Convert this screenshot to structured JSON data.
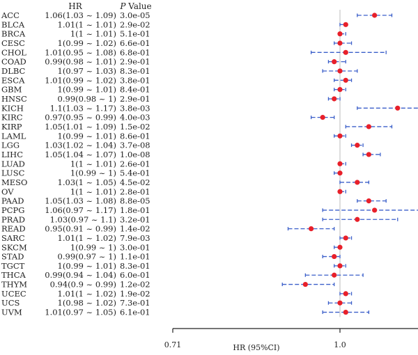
{
  "chart_data": {
    "type": "forest",
    "header": {
      "hr": "HR",
      "p": "P",
      "p_suffix": " Value"
    },
    "xlabel": "HR (95%CI)",
    "x_ticks": [
      "0.71",
      "1.0"
    ],
    "reference_line": 1.0,
    "colors": {
      "point": "#e8202a",
      "ci": "#3a5ec9",
      "ref": "#bbbbbb",
      "axis": "#222222"
    },
    "rows": [
      {
        "cancer": "ACC",
        "hr": 1.06,
        "low": 1.03,
        "high": 1.09,
        "hr_text": "1.06(1.03 ~ 1.09)",
        "p_text": "3.0e-05"
      },
      {
        "cancer": "BLCA",
        "hr": 1.01,
        "low": 1.0,
        "high": 1.01,
        "hr_text": "1.01(1 ~ 1.01)",
        "p_text": "2.9e-02"
      },
      {
        "cancer": "BRCA",
        "hr": 1.0,
        "low": 1.0,
        "high": 1.01,
        "hr_text": "1(1 ~ 1.01)",
        "p_text": "5.1e-01"
      },
      {
        "cancer": "CESC",
        "hr": 1.0,
        "low": 0.99,
        "high": 1.02,
        "hr_text": "1(0.99 ~ 1.02)",
        "p_text": "6.6e-01"
      },
      {
        "cancer": "CHOL",
        "hr": 1.01,
        "low": 0.95,
        "high": 1.08,
        "hr_text": "1.01(0.95 ~ 1.08)",
        "p_text": "6.8e-01"
      },
      {
        "cancer": "COAD",
        "hr": 0.99,
        "low": 0.98,
        "high": 1.01,
        "hr_text": "0.99(0.98 ~ 1.01)",
        "p_text": "2.9e-01"
      },
      {
        "cancer": "DLBC",
        "hr": 1.0,
        "low": 0.97,
        "high": 1.03,
        "hr_text": "1(0.97 ~ 1.03)",
        "p_text": "8.3e-01"
      },
      {
        "cancer": "ESCA",
        "hr": 1.01,
        "low": 0.99,
        "high": 1.02,
        "hr_text": "1.01(0.99 ~ 1.02)",
        "p_text": "3.8e-01"
      },
      {
        "cancer": "GBM",
        "hr": 1.0,
        "low": 0.99,
        "high": 1.01,
        "hr_text": "1(0.99 ~ 1.01)",
        "p_text": "8.4e-01"
      },
      {
        "cancer": "HNSC",
        "hr": 0.99,
        "low": 0.98,
        "high": 1.0,
        "hr_text": "0.99(0.98 ~ 1)",
        "p_text": "2.9e-01"
      },
      {
        "cancer": "KICH",
        "hr": 1.1,
        "low": 1.03,
        "high": 1.17,
        "hr_text": "1.1(1.03 ~ 1.17)",
        "p_text": "3.8e-03"
      },
      {
        "cancer": "KIRC",
        "hr": 0.97,
        "low": 0.95,
        "high": 0.99,
        "hr_text": "0.97(0.95 ~ 0.99)",
        "p_text": "4.0e-03"
      },
      {
        "cancer": "KIRP",
        "hr": 1.05,
        "low": 1.01,
        "high": 1.09,
        "hr_text": "1.05(1.01 ~ 1.09)",
        "p_text": "1.5e-02"
      },
      {
        "cancer": "LAML",
        "hr": 1.0,
        "low": 0.99,
        "high": 1.01,
        "hr_text": "1(0.99 ~ 1.01)",
        "p_text": "8.6e-01"
      },
      {
        "cancer": "LGG",
        "hr": 1.03,
        "low": 1.02,
        "high": 1.04,
        "hr_text": "1.03(1.02 ~ 1.04)",
        "p_text": "3.7e-08"
      },
      {
        "cancer": "LIHC",
        "hr": 1.05,
        "low": 1.04,
        "high": 1.07,
        "hr_text": "1.05(1.04 ~ 1.07)",
        "p_text": "1.0e-08"
      },
      {
        "cancer": "LUAD",
        "hr": 1.0,
        "low": 1.0,
        "high": 1.01,
        "hr_text": "1(1 ~ 1.01)",
        "p_text": "2.6e-01"
      },
      {
        "cancer": "LUSC",
        "hr": 1.0,
        "low": 0.99,
        "high": 1.0,
        "hr_text": "1(0.99 ~ 1)",
        "p_text": "5.4e-01"
      },
      {
        "cancer": "MESO",
        "hr": 1.03,
        "low": 1.0,
        "high": 1.05,
        "hr_text": "1.03(1 ~ 1.05)",
        "p_text": "4.5e-02"
      },
      {
        "cancer": "OV",
        "hr": 1.0,
        "low": 1.0,
        "high": 1.01,
        "hr_text": "1(1 ~ 1.01)",
        "p_text": "2.8e-01"
      },
      {
        "cancer": "PAAD",
        "hr": 1.05,
        "low": 1.03,
        "high": 1.08,
        "hr_text": "1.05(1.03 ~ 1.08)",
        "p_text": "8.8e-05"
      },
      {
        "cancer": "PCPG",
        "hr": 1.06,
        "low": 0.97,
        "high": 1.17,
        "hr_text": "1.06(0.97 ~ 1.17)",
        "p_text": "1.8e-01"
      },
      {
        "cancer": "PRAD",
        "hr": 1.03,
        "low": 0.97,
        "high": 1.1,
        "hr_text": "1.03(0.97 ~ 1.1)",
        "p_text": "3.2e-01"
      },
      {
        "cancer": "READ",
        "hr": 0.95,
        "low": 0.91,
        "high": 0.99,
        "hr_text": "0.95(0.91 ~ 0.99)",
        "p_text": "1.4e-02"
      },
      {
        "cancer": "SARC",
        "hr": 1.01,
        "low": 1.0,
        "high": 1.02,
        "hr_text": "1.01(1 ~ 1.02)",
        "p_text": "7.9e-03"
      },
      {
        "cancer": "SKCM",
        "hr": 1.0,
        "low": 0.99,
        "high": 1.0,
        "hr_text": "1(0.99 ~ 1)",
        "p_text": "3.0e-01"
      },
      {
        "cancer": "STAD",
        "hr": 0.99,
        "low": 0.97,
        "high": 1.0,
        "hr_text": "0.99(0.97 ~ 1)",
        "p_text": "1.1e-01"
      },
      {
        "cancer": "TGCT",
        "hr": 1.0,
        "low": 0.99,
        "high": 1.01,
        "hr_text": "1(0.99 ~ 1.01)",
        "p_text": "8.3e-01"
      },
      {
        "cancer": "THCA",
        "hr": 0.99,
        "low": 0.94,
        "high": 1.04,
        "hr_text": "0.99(0.94 ~ 1.04)",
        "p_text": "6.0e-01"
      },
      {
        "cancer": "THYM",
        "hr": 0.94,
        "low": 0.9,
        "high": 0.99,
        "hr_text": "0.94(0.9 ~ 0.99)",
        "p_text": "1.2e-02"
      },
      {
        "cancer": "UCEC",
        "hr": 1.01,
        "low": 1.0,
        "high": 1.02,
        "hr_text": "1.01(1 ~ 1.02)",
        "p_text": "1.9e-02"
      },
      {
        "cancer": "UCS",
        "hr": 1.0,
        "low": 0.98,
        "high": 1.02,
        "hr_text": "1(0.98 ~ 1.02)",
        "p_text": "7.3e-01"
      },
      {
        "cancer": "UVM",
        "hr": 1.01,
        "low": 0.97,
        "high": 1.05,
        "hr_text": "1.01(0.97 ~ 1.05)",
        "p_text": "6.1e-01"
      }
    ]
  }
}
